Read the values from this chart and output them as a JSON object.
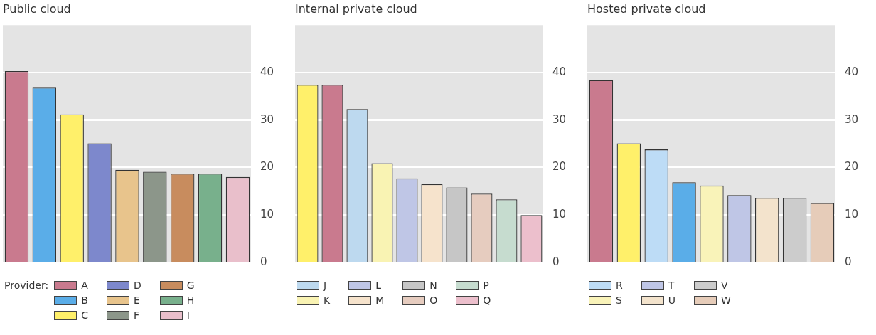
{
  "chart_data": [
    {
      "type": "bar",
      "title": "Public cloud",
      "legend_title": "Provider:",
      "categories": [
        null,
        null,
        null,
        null,
        null,
        null,
        null,
        null,
        null
      ],
      "ylim": [
        0,
        50
      ],
      "yticks": [
        0,
        10,
        20,
        30,
        40
      ],
      "grid": "y",
      "legend": "bottom left",
      "series": [
        {
          "name": "A",
          "color": "#c97a8e",
          "values": [
            40.3,
            null,
            null,
            null,
            null,
            null,
            null,
            null,
            null
          ]
        },
        {
          "name": "B",
          "color": "#5aade8",
          "values": [
            null,
            36.8,
            null,
            null,
            null,
            null,
            null,
            null,
            null
          ]
        },
        {
          "name": "C",
          "color": "#fff06a",
          "values": [
            null,
            null,
            31.2,
            null,
            null,
            null,
            null,
            null,
            null
          ]
        },
        {
          "name": "D",
          "color": "#7d88cc",
          "values": [
            null,
            null,
            null,
            25.1,
            null,
            null,
            null,
            null,
            null
          ]
        },
        {
          "name": "E",
          "color": "#e8c48c",
          "values": [
            null,
            null,
            null,
            null,
            19.5,
            null,
            null,
            null,
            null
          ]
        },
        {
          "name": "F",
          "color": "#8c968a",
          "values": [
            null,
            null,
            null,
            null,
            null,
            19.1,
            null,
            null,
            null
          ]
        },
        {
          "name": "G",
          "color": "#c88c5e",
          "values": [
            null,
            null,
            null,
            null,
            null,
            null,
            18.7,
            null,
            null
          ]
        },
        {
          "name": "H",
          "color": "#78b08c",
          "values": [
            null,
            null,
            null,
            null,
            null,
            null,
            null,
            18.7,
            null
          ]
        },
        {
          "name": "I",
          "color": "#e9bfcb",
          "values": [
            null,
            null,
            null,
            null,
            null,
            null,
            null,
            null,
            18.0
          ]
        }
      ]
    },
    {
      "type": "bar",
      "title": "Internal private cloud",
      "categories": [
        null,
        null,
        null,
        null,
        null,
        null,
        null,
        null,
        null,
        null
      ],
      "ylim": [
        0,
        50
      ],
      "yticks": [
        0,
        10,
        20,
        30,
        40
      ],
      "grid": "y",
      "legend": "bottom left",
      "series": [
        {
          "color": "#fff06a",
          "values": [
            37.4,
            null,
            null,
            null,
            null,
            null,
            null,
            null,
            null,
            null
          ]
        },
        {
          "color": "#c97a8e",
          "values": [
            null,
            37.4,
            null,
            null,
            null,
            null,
            null,
            null,
            null,
            null
          ]
        },
        {
          "name": "J",
          "color": "#bdd9ef",
          "values": [
            null,
            null,
            32.3,
            null,
            null,
            null,
            null,
            null,
            null,
            null
          ]
        },
        {
          "name": "K",
          "color": "#f9f3b3",
          "values": [
            null,
            null,
            null,
            20.9,
            null,
            null,
            null,
            null,
            null,
            null
          ]
        },
        {
          "name": "L",
          "color": "#bfc6e6",
          "values": [
            null,
            null,
            null,
            null,
            17.7,
            null,
            null,
            null,
            null,
            null
          ]
        },
        {
          "name": "M",
          "color": "#f6e3cc",
          "values": [
            null,
            null,
            null,
            null,
            null,
            16.5,
            null,
            null,
            null,
            null
          ]
        },
        {
          "name": "N",
          "color": "#c6c6c6",
          "values": [
            null,
            null,
            null,
            null,
            null,
            null,
            15.8,
            null,
            null,
            null
          ]
        },
        {
          "name": "O",
          "color": "#e6ccbf",
          "values": [
            null,
            null,
            null,
            null,
            null,
            null,
            null,
            14.5,
            null,
            null
          ]
        },
        {
          "name": "P",
          "color": "#c6dccf",
          "values": [
            null,
            null,
            null,
            null,
            null,
            null,
            null,
            null,
            13.3,
            null
          ]
        },
        {
          "name": "Q",
          "color": "#ecbfcc",
          "values": [
            null,
            null,
            null,
            null,
            null,
            null,
            null,
            null,
            null,
            10.0
          ]
        }
      ]
    },
    {
      "type": "bar",
      "title": "Hosted private cloud",
      "categories": [
        null,
        null,
        null,
        null,
        null,
        null,
        null,
        null,
        null
      ],
      "ylim": [
        0,
        50
      ],
      "yticks": [
        0,
        10,
        20,
        30,
        40
      ],
      "grid": "y",
      "legend": "bottom left",
      "series": [
        {
          "color": "#c97a8e",
          "values": [
            38.4,
            null,
            null,
            null,
            null,
            null,
            null,
            null,
            null
          ]
        },
        {
          "color": "#fff06a",
          "values": [
            null,
            25.1,
            null,
            null,
            null,
            null,
            null,
            null,
            null
          ]
        },
        {
          "name": "R",
          "color": "#bddcf6",
          "values": [
            null,
            null,
            23.8,
            null,
            null,
            null,
            null,
            null,
            null
          ]
        },
        {
          "color": "#5aade8",
          "values": [
            null,
            null,
            null,
            16.9,
            null,
            null,
            null,
            null,
            null
          ]
        },
        {
          "name": "S",
          "color": "#f9f3b9",
          "values": [
            null,
            null,
            null,
            null,
            16.2,
            null,
            null,
            null,
            null
          ]
        },
        {
          "name": "T",
          "color": "#bfc6e6",
          "values": [
            null,
            null,
            null,
            null,
            null,
            14.2,
            null,
            null,
            null
          ]
        },
        {
          "name": "U",
          "color": "#f3e3cc",
          "values": [
            null,
            null,
            null,
            null,
            null,
            null,
            13.6,
            null,
            null
          ]
        },
        {
          "name": "V",
          "color": "#cccccc",
          "values": [
            null,
            null,
            null,
            null,
            null,
            null,
            null,
            13.6,
            null
          ]
        },
        {
          "name": "W",
          "color": "#e6ccb9",
          "values": [
            null,
            null,
            null,
            null,
            null,
            null,
            null,
            null,
            12.5
          ]
        }
      ]
    }
  ]
}
